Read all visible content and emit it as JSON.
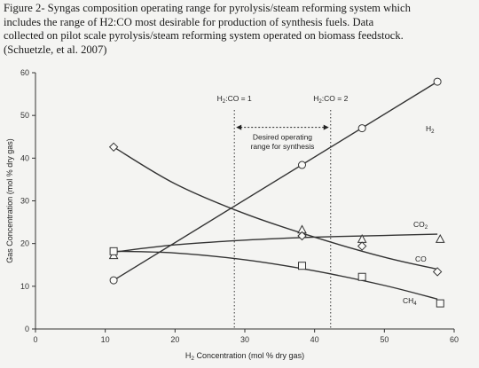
{
  "caption": {
    "lines": [
      "Figure 2- Syngas composition operating range for pyrolysis/steam reforming system which",
      "includes the range of H2:CO most desirable for production of synthesis fuels.  Data",
      "collected on pilot scale pyrolysis/steam reforming system operated on biomass feedstock.",
      "(Schuetzle, et al. 2007)"
    ]
  },
  "chart_data": {
    "type": "scatter",
    "xlabel_parts": [
      "H",
      "2",
      " Concentration (mol % dry gas)"
    ],
    "ylabel": "Gas Concentration (mol % dry gas)",
    "xlim": [
      0,
      60
    ],
    "ylim": [
      0,
      60
    ],
    "xticks": [
      0,
      10,
      20,
      30,
      40,
      50,
      60
    ],
    "yticks": [
      0,
      10,
      20,
      30,
      40,
      50,
      60
    ],
    "grid": false,
    "series": [
      {
        "name": "H2",
        "label_parts": [
          "H",
          "2"
        ],
        "marker": "circle",
        "x": [
          11.2,
          38.2,
          46.8,
          57.6
        ],
        "y": [
          11.4,
          38.4,
          47.0,
          57.9
        ],
        "fit": [
          [
            11.2,
            11.4
          ],
          [
            57.6,
            57.9
          ]
        ]
      },
      {
        "name": "CO2",
        "label_parts": [
          "CO",
          "2"
        ],
        "marker": "triangle",
        "x": [
          11.2,
          38.2,
          46.8,
          58.0
        ],
        "y": [
          17.2,
          23.2,
          21.0,
          21.0
        ],
        "fit": [
          [
            11.2,
            18.0
          ],
          [
            20,
            19.7
          ],
          [
            30,
            20.8
          ],
          [
            40,
            21.5
          ],
          [
            50,
            21.9
          ],
          [
            57.6,
            22.2
          ]
        ]
      },
      {
        "name": "CO",
        "label_parts": [
          "CO",
          ""
        ],
        "marker": "diamond",
        "x": [
          11.2,
          38.2,
          46.8,
          57.6
        ],
        "y": [
          42.6,
          21.8,
          19.4,
          13.4
        ],
        "fit": [
          [
            11.2,
            42.6
          ],
          [
            20,
            34.0
          ],
          [
            30,
            27.0
          ],
          [
            40,
            21.5
          ],
          [
            50,
            16.8
          ],
          [
            57.6,
            14.0
          ]
        ]
      },
      {
        "name": "CH4",
        "label_parts": [
          "CH",
          "4"
        ],
        "marker": "square",
        "x": [
          11.2,
          38.2,
          46.8,
          58.0
        ],
        "y": [
          18.2,
          14.8,
          12.2,
          6.0
        ],
        "fit": [
          [
            11.2,
            18.2
          ],
          [
            20,
            17.8
          ],
          [
            30,
            16.2
          ],
          [
            40,
            13.6
          ],
          [
            50,
            10.2
          ],
          [
            57.6,
            7.0
          ]
        ]
      }
    ],
    "annotations": {
      "ratio_lines": [
        {
          "x": 28.5,
          "label_parts": [
            "H",
            "2",
            ":CO = 1"
          ]
        },
        {
          "x": 42.3,
          "label_parts": [
            "H",
            "2",
            ":CO = 2"
          ]
        }
      ],
      "operating_range": {
        "x_from": 28.5,
        "x_to": 42.3,
        "y": 47.2,
        "text": [
          "Desired operating",
          "range for synthesis"
        ]
      }
    }
  }
}
